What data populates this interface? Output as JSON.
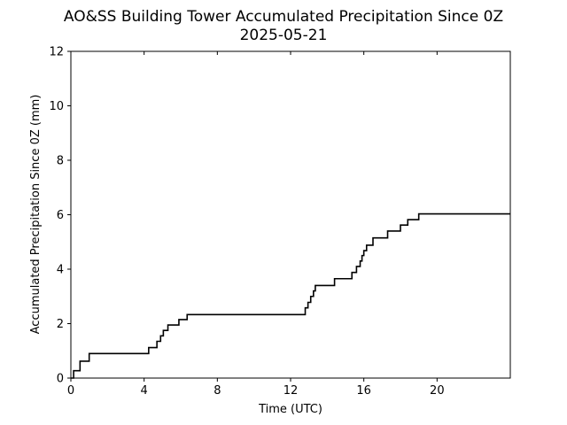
{
  "chart_data": {
    "type": "line",
    "title": "AO&SS Building Tower Accumulated Precipitation Since 0Z",
    "subtitle": "2025-05-21",
    "xlabel": "Time (UTC)",
    "ylabel": "Accumulated Precipitation Since 0Z (mm)",
    "xlim": [
      0,
      24
    ],
    "ylim": [
      0,
      12
    ],
    "xticks": [
      0,
      4,
      8,
      12,
      16,
      20
    ],
    "xtick_labels": [
      "0",
      "4",
      "8",
      "12",
      "16",
      "20"
    ],
    "yticks": [
      0,
      2,
      4,
      6,
      8,
      10,
      12
    ],
    "ytick_labels": [
      "0",
      "2",
      "4",
      "6",
      "8",
      "10",
      "12"
    ],
    "grid": false,
    "line_color": "#000000",
    "series": [
      {
        "step": "post",
        "x": [
          0.0,
          0.15,
          0.5,
          1.0,
          4.25,
          4.7,
          4.9,
          5.05,
          5.3,
          5.9,
          6.35,
          12.8,
          12.95,
          13.1,
          13.25,
          13.35,
          14.4,
          15.35,
          15.6,
          15.8,
          15.9,
          16.0,
          16.15,
          16.5,
          17.3,
          18.0,
          18.4,
          19.0,
          24.0
        ],
        "y": [
          0.0,
          0.27,
          0.62,
          0.9,
          1.12,
          1.35,
          1.55,
          1.75,
          1.95,
          2.15,
          2.33,
          2.58,
          2.78,
          3.0,
          3.2,
          3.4,
          3.65,
          3.88,
          4.1,
          4.3,
          4.5,
          4.68,
          4.88,
          5.15,
          5.4,
          5.62,
          5.82,
          6.03,
          6.03
        ]
      }
    ]
  }
}
